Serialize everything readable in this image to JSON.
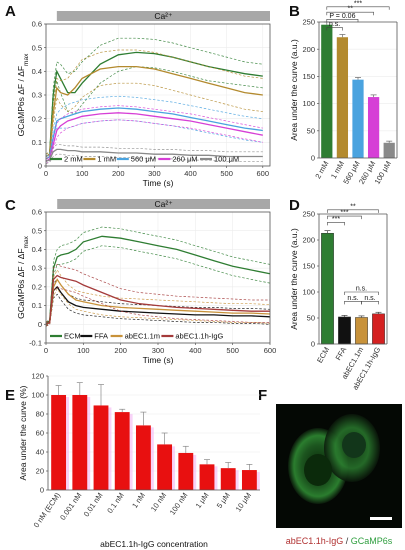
{
  "panels": {
    "A": "A",
    "B": "B",
    "C": "C",
    "D": "D",
    "E": "E",
    "F": "F"
  },
  "chart_data": [
    {
      "id": "A",
      "type": "line",
      "band_label": "Ca²⁺",
      "xlabel": "Time (s)",
      "ylabel_parts": [
        "GCaMP6s ΔF / ΔF",
        "max"
      ],
      "xlim": [
        0,
        620
      ],
      "ylim": [
        0,
        0.6
      ],
      "xticks": [
        0,
        100,
        200,
        300,
        400,
        500,
        600
      ],
      "yticks": [
        0,
        0.1,
        0.2,
        0.3,
        0.4,
        0.5,
        0.6
      ],
      "legend_position": "bottom",
      "series": [
        {
          "name": "2 mM",
          "color": "#2e7d32",
          "x": [
            0,
            10,
            20,
            30,
            40,
            60,
            80,
            100,
            150,
            200,
            250,
            300,
            350,
            400,
            450,
            500,
            550,
            600
          ],
          "y": [
            0.04,
            0.05,
            0.3,
            0.4,
            0.37,
            0.31,
            0.31,
            0.35,
            0.43,
            0.47,
            0.48,
            0.475,
            0.46,
            0.44,
            0.42,
            0.405,
            0.39,
            0.38
          ],
          "upper": [
            0.05,
            0.06,
            0.33,
            0.44,
            0.43,
            0.39,
            0.4,
            0.44,
            0.51,
            0.54,
            0.54,
            0.535,
            0.52,
            0.5,
            0.48,
            0.46,
            0.44,
            0.43
          ],
          "lower": [
            0.03,
            0.04,
            0.27,
            0.36,
            0.31,
            0.23,
            0.22,
            0.26,
            0.35,
            0.4,
            0.42,
            0.415,
            0.4,
            0.38,
            0.36,
            0.35,
            0.34,
            0.33
          ]
        },
        {
          "name": "1 mM",
          "color": "#b38a2e",
          "x": [
            0,
            10,
            20,
            30,
            40,
            60,
            80,
            100,
            150,
            200,
            250,
            300,
            350,
            400,
            450,
            500,
            550,
            600
          ],
          "y": [
            0.04,
            0.05,
            0.22,
            0.33,
            0.31,
            0.3,
            0.33,
            0.37,
            0.41,
            0.42,
            0.42,
            0.41,
            0.39,
            0.37,
            0.35,
            0.33,
            0.31,
            0.3
          ],
          "upper": [
            0.05,
            0.06,
            0.26,
            0.37,
            0.36,
            0.37,
            0.41,
            0.45,
            0.48,
            0.49,
            0.49,
            0.48,
            0.46,
            0.44,
            0.42,
            0.4,
            0.38,
            0.37
          ],
          "lower": [
            0.03,
            0.04,
            0.18,
            0.29,
            0.26,
            0.23,
            0.25,
            0.29,
            0.34,
            0.35,
            0.35,
            0.34,
            0.32,
            0.3,
            0.28,
            0.26,
            0.24,
            0.23
          ]
        },
        {
          "name": "560 μM",
          "color": "#4aa3df",
          "x": [
            0,
            10,
            20,
            30,
            40,
            60,
            80,
            100,
            150,
            200,
            250,
            300,
            350,
            400,
            450,
            500,
            550,
            600
          ],
          "y": [
            0.03,
            0.04,
            0.12,
            0.19,
            0.2,
            0.21,
            0.22,
            0.23,
            0.24,
            0.245,
            0.24,
            0.23,
            0.22,
            0.205,
            0.19,
            0.175,
            0.16,
            0.15
          ],
          "upper": [
            0.04,
            0.05,
            0.15,
            0.22,
            0.24,
            0.26,
            0.27,
            0.28,
            0.29,
            0.295,
            0.29,
            0.28,
            0.27,
            0.255,
            0.24,
            0.225,
            0.21,
            0.2
          ],
          "lower": [
            0.02,
            0.03,
            0.09,
            0.16,
            0.16,
            0.16,
            0.17,
            0.18,
            0.19,
            0.195,
            0.19,
            0.18,
            0.17,
            0.155,
            0.14,
            0.125,
            0.11,
            0.1
          ]
        },
        {
          "name": "260 μM",
          "color": "#d63fd6",
          "x": [
            0,
            10,
            20,
            30,
            40,
            60,
            80,
            100,
            150,
            200,
            250,
            300,
            350,
            400,
            450,
            500,
            550,
            600
          ],
          "y": [
            0.02,
            0.03,
            0.09,
            0.15,
            0.17,
            0.19,
            0.2,
            0.21,
            0.22,
            0.225,
            0.22,
            0.21,
            0.2,
            0.19,
            0.175,
            0.16,
            0.145,
            0.13
          ],
          "upper": [
            0.03,
            0.04,
            0.11,
            0.18,
            0.2,
            0.22,
            0.23,
            0.24,
            0.25,
            0.255,
            0.25,
            0.24,
            0.23,
            0.22,
            0.205,
            0.19,
            0.175,
            0.16
          ],
          "lower": [
            0.01,
            0.02,
            0.07,
            0.12,
            0.14,
            0.16,
            0.17,
            0.18,
            0.19,
            0.195,
            0.19,
            0.18,
            0.17,
            0.16,
            0.145,
            0.13,
            0.115,
            0.1
          ]
        },
        {
          "name": "100 μM",
          "color": "#8a8a8a",
          "x": [
            0,
            10,
            20,
            30,
            40,
            60,
            80,
            100,
            150,
            200,
            250,
            300,
            350,
            400,
            450,
            500,
            550,
            600
          ],
          "y": [
            0.02,
            0.025,
            0.06,
            0.07,
            0.07,
            0.065,
            0.065,
            0.06,
            0.06,
            0.055,
            0.055,
            0.05,
            0.05,
            0.045,
            0.045,
            0.04,
            0.04,
            0.04
          ],
          "upper": [
            0.03,
            0.035,
            0.08,
            0.09,
            0.09,
            0.085,
            0.085,
            0.08,
            0.08,
            0.075,
            0.075,
            0.07,
            0.07,
            0.065,
            0.065,
            0.06,
            0.06,
            0.06
          ],
          "lower": [
            0.01,
            0.015,
            0.04,
            0.05,
            0.05,
            0.045,
            0.045,
            0.04,
            0.04,
            0.035,
            0.035,
            0.03,
            0.03,
            0.025,
            0.025,
            0.02,
            0.02,
            0.02
          ]
        }
      ]
    },
    {
      "id": "B",
      "type": "bar",
      "ylabel": "Area under the curve (a.u.)",
      "ylim": [
        0,
        250
      ],
      "yticks": [
        0,
        50,
        100,
        150,
        200,
        250
      ],
      "categories": [
        "2 mM",
        "1 mM",
        "560 μM",
        "260 μM",
        "100 μM"
      ],
      "values": [
        245,
        222,
        144,
        112,
        28
      ],
      "errors": [
        5,
        5,
        4,
        4,
        3
      ],
      "colors": [
        "#2e7d32",
        "#b38a2e",
        "#4aa3df",
        "#d63fd6",
        "#8a8a8a"
      ],
      "annotations": [
        {
          "from": 0,
          "to": 4,
          "label": "***",
          "level": 278
        },
        {
          "from": 0,
          "to": 3,
          "label": "**",
          "level": 268
        },
        {
          "from": 0,
          "to": 2,
          "label": "P = 0.06",
          "level": 255
        },
        {
          "from": 0,
          "to": 1,
          "label": "n.s.",
          "level": 240
        }
      ]
    },
    {
      "id": "C",
      "type": "line",
      "band_label": "Ca²⁺",
      "xlabel": "Time (s)",
      "ylabel_parts": [
        "GCaMP6s ΔF / ΔF",
        "max"
      ],
      "xlim": [
        0,
        600
      ],
      "ylim": [
        -0.1,
        0.6
      ],
      "xticks": [
        0,
        100,
        200,
        300,
        400,
        500,
        600
      ],
      "yticks": [
        -0.1,
        0,
        0.1,
        0.2,
        0.3,
        0.4,
        0.5,
        0.6
      ],
      "legend_position": "bottom",
      "series": [
        {
          "name": "ECM",
          "color": "#2e7d32",
          "x": [
            0,
            10,
            20,
            30,
            40,
            60,
            80,
            100,
            150,
            200,
            250,
            300,
            350,
            400,
            450,
            500,
            550,
            600
          ],
          "y": [
            0.0,
            0.02,
            0.3,
            0.36,
            0.37,
            0.38,
            0.4,
            0.44,
            0.47,
            0.46,
            0.44,
            0.42,
            0.4,
            0.37,
            0.34,
            0.31,
            0.29,
            0.27
          ],
          "upper": [
            0.01,
            0.03,
            0.34,
            0.4,
            0.42,
            0.43,
            0.45,
            0.49,
            0.52,
            0.51,
            0.49,
            0.47,
            0.45,
            0.42,
            0.39,
            0.36,
            0.34,
            0.32
          ],
          "lower": [
            -0.01,
            0.01,
            0.26,
            0.32,
            0.32,
            0.33,
            0.35,
            0.39,
            0.42,
            0.41,
            0.39,
            0.37,
            0.35,
            0.32,
            0.29,
            0.26,
            0.24,
            0.22
          ]
        },
        {
          "name": "FFA",
          "color": "#111111",
          "x": [
            0,
            10,
            20,
            30,
            40,
            60,
            80,
            100,
            150,
            200,
            250,
            300,
            350,
            400,
            450,
            500,
            550,
            600
          ],
          "y": [
            0.0,
            0.01,
            0.18,
            0.2,
            0.17,
            0.12,
            0.1,
            0.09,
            0.08,
            0.07,
            0.065,
            0.06,
            0.055,
            0.05,
            0.05,
            0.045,
            0.045,
            0.04
          ],
          "upper": [
            0.01,
            0.02,
            0.22,
            0.24,
            0.21,
            0.16,
            0.14,
            0.13,
            0.12,
            0.11,
            0.105,
            0.1,
            0.095,
            0.09,
            0.09,
            0.085,
            0.085,
            0.08
          ],
          "lower": [
            -0.01,
            0.0,
            0.14,
            0.16,
            0.13,
            0.08,
            0.06,
            0.05,
            0.04,
            0.03,
            0.025,
            0.02,
            0.015,
            0.01,
            0.01,
            0.005,
            0.005,
            0.0
          ]
        },
        {
          "name": "abEC1.1m",
          "color": "#c8923a",
          "x": [
            0,
            10,
            20,
            30,
            40,
            60,
            80,
            100,
            150,
            200,
            250,
            300,
            350,
            400,
            450,
            500,
            550,
            600
          ],
          "y": [
            0.0,
            0.01,
            0.2,
            0.24,
            0.21,
            0.16,
            0.13,
            0.12,
            0.1,
            0.09,
            0.085,
            0.08,
            0.075,
            0.07,
            0.065,
            0.06,
            0.06,
            0.055
          ],
          "upper": [
            0.01,
            0.02,
            0.25,
            0.29,
            0.26,
            0.21,
            0.18,
            0.17,
            0.15,
            0.14,
            0.135,
            0.13,
            0.125,
            0.12,
            0.115,
            0.11,
            0.11,
            0.105
          ],
          "lower": [
            -0.01,
            0.0,
            0.15,
            0.19,
            0.16,
            0.11,
            0.08,
            0.07,
            0.05,
            0.04,
            0.035,
            0.03,
            0.025,
            0.02,
            0.015,
            0.01,
            0.01,
            0.005
          ]
        },
        {
          "name": "abEC1.1h-IgG",
          "color": "#a43a3a",
          "x": [
            0,
            10,
            20,
            30,
            40,
            60,
            80,
            100,
            150,
            200,
            250,
            300,
            350,
            400,
            450,
            500,
            550,
            600
          ],
          "y": [
            0.0,
            0.01,
            0.24,
            0.26,
            0.25,
            0.24,
            0.23,
            0.21,
            0.17,
            0.13,
            0.11,
            0.1,
            0.09,
            0.085,
            0.08,
            0.075,
            0.07,
            0.07
          ],
          "upper": [
            0.01,
            0.02,
            0.3,
            0.32,
            0.31,
            0.3,
            0.29,
            0.27,
            0.23,
            0.19,
            0.17,
            0.16,
            0.15,
            0.145,
            0.14,
            0.135,
            0.13,
            0.13
          ],
          "lower": [
            -0.01,
            0.0,
            0.18,
            0.2,
            0.19,
            0.18,
            0.17,
            0.15,
            0.11,
            0.07,
            0.05,
            0.04,
            0.03,
            0.025,
            0.02,
            0.015,
            0.01,
            0.01
          ]
        }
      ]
    },
    {
      "id": "D",
      "type": "bar",
      "ylabel": "Area under the curve (a.u.)",
      "ylim": [
        0,
        250
      ],
      "yticks": [
        0,
        50,
        100,
        150,
        200,
        250
      ],
      "categories": [
        "ECM",
        "FFA",
        "abEC1.1m",
        "abEC1.1h-IgG"
      ],
      "values": [
        213,
        52,
        51,
        58
      ],
      "errors": [
        5,
        3,
        3,
        3
      ],
      "colors": [
        "#2e7d32",
        "#111111",
        "#c8923a",
        "#d42020"
      ],
      "annotations": [
        {
          "from": 0,
          "to": 3,
          "label": "**",
          "level": 258
        },
        {
          "from": 0,
          "to": 2,
          "label": "***",
          "level": 246
        },
        {
          "from": 0,
          "to": 1,
          "label": "***",
          "level": 234
        },
        {
          "from": 1,
          "to": 3,
          "label": "n.s.",
          "level": 100
        },
        {
          "from": 1,
          "to": 2,
          "label": "n.s.",
          "level": 82
        },
        {
          "from": 2,
          "to": 3,
          "label": "n.s.",
          "level": 82
        }
      ]
    },
    {
      "id": "E",
      "type": "bar",
      "xlabel": "abEC1.1h-IgG concentration",
      "ylabel": "Area under the curve (%)",
      "ylim": [
        0,
        120
      ],
      "yticks": [
        0,
        20,
        40,
        60,
        80,
        100,
        120
      ],
      "categories": [
        "0 nM (ECM)",
        "0.001 nM",
        "0.01 nM",
        "0.1 nM",
        "1 nM",
        "10 nM",
        "100 nM",
        "1 μM",
        "5 μM",
        "10 μM"
      ],
      "values": [
        100,
        100,
        89,
        82,
        68,
        48,
        39,
        27,
        23,
        21
      ],
      "errors": [
        10,
        13,
        22,
        3,
        14,
        12,
        7,
        5,
        6,
        6
      ],
      "color": "#e81010"
    }
  ],
  "micrograph": {
    "caption_red": "abEC1.1h-IgG",
    "caption_sep": " / ",
    "caption_green": "GCaMP6s",
    "red_color": "#b03030",
    "green_color": "#2e9e3e"
  }
}
